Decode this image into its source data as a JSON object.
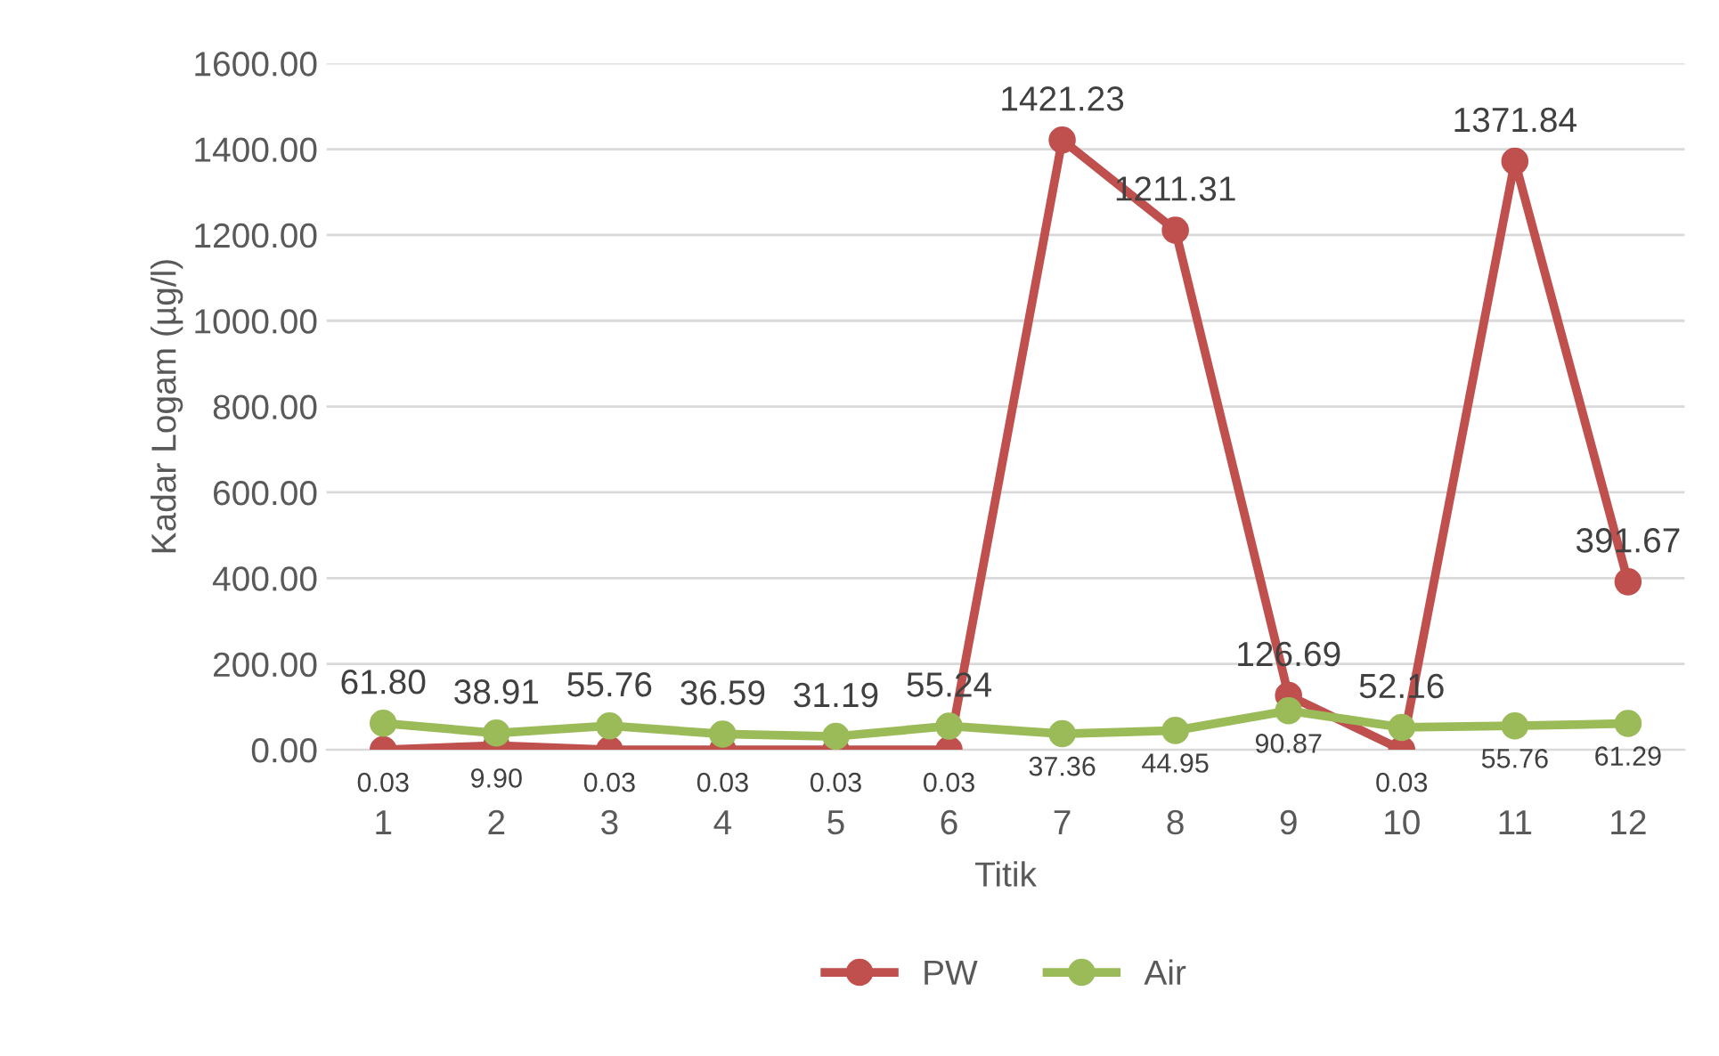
{
  "chart_data": {
    "type": "line",
    "xlabel": "Titik",
    "ylabel": "Kadar Logam (µg/l)",
    "categories": [
      "1",
      "2",
      "3",
      "4",
      "5",
      "6",
      "7",
      "8",
      "9",
      "10",
      "11",
      "12"
    ],
    "series": [
      {
        "name": "PW",
        "color": "#c0504d",
        "values": [
          0.03,
          9.9,
          0.03,
          0.03,
          0.03,
          0.03,
          1421.23,
          1211.31,
          126.69,
          0.03,
          1371.84,
          391.67
        ],
        "value_labels": [
          "0.03",
          "9.90",
          "0.03",
          "0.03",
          "0.03",
          "0.03",
          "1421.23",
          "1211.31",
          "126.69",
          "0.03",
          "1371.84",
          "391.67"
        ]
      },
      {
        "name": "Air",
        "color": "#9bbb59",
        "values": [
          61.8,
          38.91,
          55.76,
          36.59,
          31.19,
          55.24,
          37.36,
          44.95,
          90.87,
          52.16,
          55.76,
          61.29
        ],
        "value_labels": [
          "61.80",
          "38.91",
          "55.76",
          "36.59",
          "31.19",
          "55.24",
          "37.36",
          "44.95",
          "90.87",
          "52.16",
          "55.76",
          "61.29"
        ]
      }
    ],
    "ylim": [
      0,
      1600
    ],
    "yticks": [
      {
        "value": 0,
        "label": "0.00"
      },
      {
        "value": 200,
        "label": "200.00"
      },
      {
        "value": 400,
        "label": "400.00"
      },
      {
        "value": 600,
        "label": "600.00"
      },
      {
        "value": 800,
        "label": "800.00"
      },
      {
        "value": 1000,
        "label": "1000.00"
      },
      {
        "value": 1200,
        "label": "1200.00"
      },
      {
        "value": 1400,
        "label": "1400.00"
      },
      {
        "value": 1600,
        "label": "1600.00"
      }
    ],
    "grid": "y",
    "legend": "bottom",
    "marker": "circle",
    "line_style": "solid"
  }
}
